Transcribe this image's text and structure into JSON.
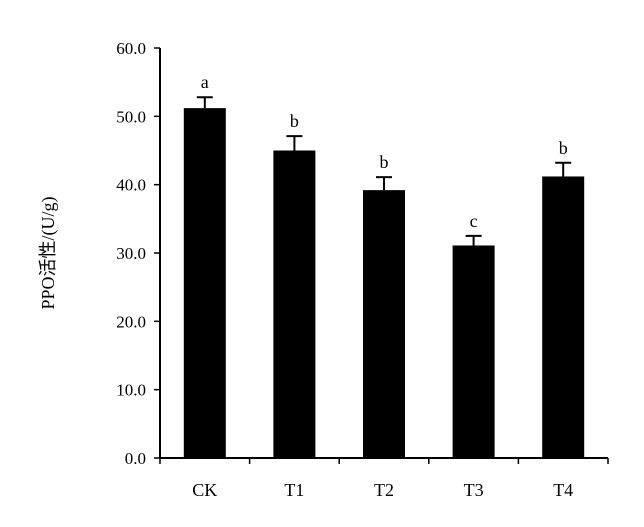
{
  "chart_data": {
    "type": "bar",
    "title": "",
    "xlabel": "",
    "ylabel": "PPO活性/(U/g)",
    "categories": [
      "CK",
      "T1",
      "T2",
      "T3",
      "T4"
    ],
    "values": [
      51.2,
      45.0,
      39.2,
      31.1,
      41.2
    ],
    "errors": [
      1.6,
      2.1,
      1.9,
      1.4,
      2.0
    ],
    "significance": [
      "a",
      "b",
      "b",
      "c",
      "b"
    ],
    "ylim": [
      0,
      60
    ],
    "yticks": [
      "0.0",
      "10.0",
      "20.0",
      "30.0",
      "40.0",
      "50.0",
      "60.0"
    ],
    "grid": false,
    "legend": "none",
    "colors": {
      "bar": "#000000",
      "axis": "#000000",
      "background": "#ffffff"
    }
  }
}
